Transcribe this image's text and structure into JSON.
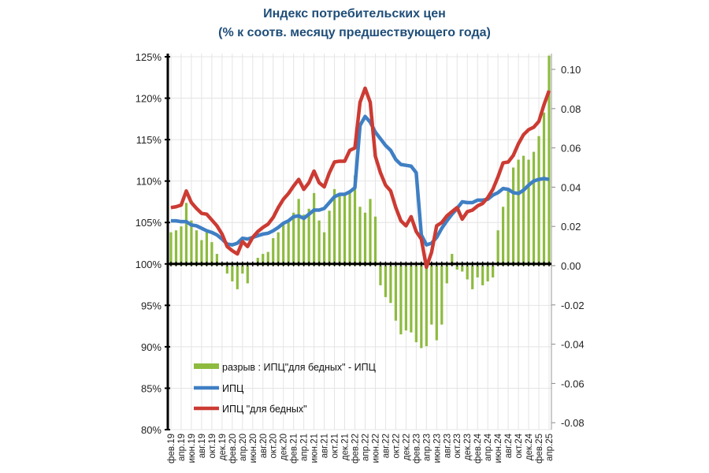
{
  "chart_data": {
    "type": "bar+line",
    "title": [
      "Индекс потребительских цен",
      "(% к соотв. месяцу предшествующего года)"
    ],
    "xlabels": [
      "фев.19",
      "апр.19",
      "июн.19",
      "авг.19",
      "окт.19",
      "дек.19",
      "фев.20",
      "апр.20",
      "июн.20",
      "авг.20",
      "окт.20",
      "дек.20",
      "фев.21",
      "апр.21",
      "июн.21",
      "авг.21",
      "окт.21",
      "дек.21",
      "фев.22",
      "апр.22",
      "июн.22",
      "авг.22",
      "окт.22",
      "дек.22",
      "фев.23",
      "апр.23",
      "июн.23",
      "авг.23",
      "окт.23",
      "дек.23",
      "фев.24",
      "апр.24",
      "июн.24",
      "авг.24",
      "окт.24",
      "дек.24",
      "фев.25",
      "апр.25"
    ],
    "x_range": "monthly, фев.19 – апр.25",
    "left_axis": {
      "ylim": [
        80,
        125
      ],
      "ticks": [
        "80%",
        "85%",
        "90%",
        "95%",
        "100%",
        "105%",
        "110%",
        "115%",
        "120%",
        "125%"
      ]
    },
    "right_axis": {
      "ylim": [
        -0.08,
        0.1
      ],
      "ticks": [
        "-0.08",
        "-0.06",
        "-0.04",
        "-0.02",
        "0.00",
        "0.02",
        "0.04",
        "0.06",
        "0.08",
        "0.10"
      ]
    },
    "grid": true,
    "legend_position": "bottom-left inside",
    "series": [
      {
        "name": "разрыв : ИПЦ\"для бедных\" - ИПЦ",
        "type": "bar",
        "axis": "right",
        "color": "#8dbb3f",
        "values": [
          0.017,
          0.018,
          0.02,
          0.032,
          0.023,
          0.018,
          0.013,
          0.017,
          0.012,
          0.006,
          0.001,
          -0.004,
          -0.008,
          -0.012,
          -0.004,
          -0.009,
          0.0,
          0.004,
          0.006,
          0.007,
          0.014,
          0.017,
          0.022,
          0.022,
          0.027,
          0.034,
          0.026,
          0.029,
          0.037,
          0.023,
          0.017,
          0.028,
          0.039,
          0.037,
          0.037,
          0.037,
          0.046,
          0.03,
          0.027,
          0.034,
          0.025,
          -0.01,
          -0.016,
          -0.019,
          -0.028,
          -0.035,
          -0.033,
          -0.034,
          -0.039,
          -0.042,
          -0.041,
          -0.03,
          -0.038,
          -0.03,
          -0.009,
          0.006,
          -0.002,
          -0.003,
          -0.007,
          -0.012,
          -0.006,
          -0.01,
          -0.008,
          -0.006,
          0.018,
          0.03,
          0.039,
          0.05,
          0.054,
          0.056,
          0.054,
          0.058,
          0.066,
          0.078,
          0.107
        ]
      },
      {
        "name": "ИПЦ",
        "type": "line",
        "axis": "left",
        "color": "#3f7fc4",
        "values": [
          105.2,
          105.2,
          105.1,
          105.1,
          104.7,
          104.6,
          104.3,
          104.0,
          103.8,
          103.5,
          103.0,
          102.4,
          102.3,
          102.5,
          103.1,
          103.0,
          103.2,
          103.4,
          103.6,
          103.7,
          104.0,
          104.4,
          104.9,
          105.2,
          105.7,
          105.8,
          105.5,
          106.0,
          106.5,
          106.5,
          106.7,
          107.4,
          108.1,
          108.4,
          108.4,
          108.7,
          109.2,
          116.7,
          117.8,
          117.1,
          115.9,
          115.1,
          114.3,
          113.7,
          112.6,
          112.0,
          111.9,
          111.8,
          111.0,
          103.5,
          102.3,
          102.5,
          103.2,
          104.3,
          105.2,
          106.0,
          106.7,
          107.5,
          107.4,
          107.4,
          107.7,
          107.7,
          107.8,
          108.3,
          108.6,
          109.1,
          109.0,
          108.6,
          108.5,
          108.9,
          109.5,
          110.0,
          110.2,
          110.3,
          110.2
        ]
      },
      {
        "name": "ИПЦ \"для бедных\"",
        "type": "line",
        "axis": "left",
        "color": "#cc3b33",
        "values": [
          106.8,
          106.9,
          107.1,
          108.8,
          107.4,
          106.7,
          106.1,
          106.0,
          105.3,
          104.6,
          103.6,
          102.1,
          101.6,
          101.2,
          102.7,
          102.1,
          103.2,
          103.9,
          104.4,
          104.8,
          105.6,
          106.8,
          107.8,
          108.5,
          109.4,
          110.2,
          109.0,
          109.8,
          111.2,
          109.8,
          109.3,
          111.0,
          112.3,
          112.4,
          112.4,
          113.7,
          114.0,
          119.5,
          121.2,
          119.5,
          113.0,
          111.0,
          109.5,
          108.8,
          106.8,
          105.2,
          104.6,
          105.7,
          103.9,
          103.0,
          99.6,
          101.4,
          104.6,
          105.0,
          105.8,
          106.3,
          106.8,
          105.4,
          106.3,
          106.5,
          107.0,
          107.3,
          108.0,
          109.0,
          110.5,
          112.2,
          112.3,
          113.1,
          114.5,
          115.6,
          116.2,
          116.5,
          117.2,
          119.2,
          120.9
        ]
      }
    ]
  }
}
